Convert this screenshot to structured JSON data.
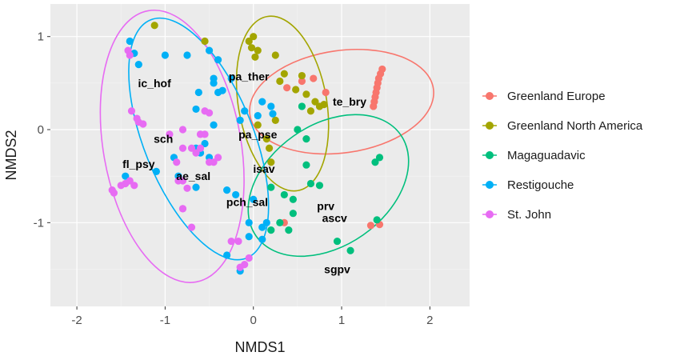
{
  "chart_data": {
    "type": "scatter",
    "title": "",
    "xlabel": "NMDS1",
    "ylabel": "NMDS2",
    "xlim": [
      -2.3,
      2.45
    ],
    "ylim": [
      -1.9,
      1.35
    ],
    "x_ticks": [
      -2,
      -1,
      0,
      1,
      2
    ],
    "y_ticks": [
      -1,
      0,
      1
    ],
    "x_tick_labels": [
      "-2",
      "-1",
      "0",
      "1",
      "2"
    ],
    "y_tick_labels": [
      "-1",
      "0",
      "1"
    ],
    "grid": true,
    "background": "#ebebeb",
    "legend_position": "right",
    "series": [
      {
        "name": "Greenland Europe",
        "color": "#f8766d",
        "points": [
          [
            1.46,
            0.65
          ],
          [
            1.44,
            0.6
          ],
          [
            1.42,
            0.55
          ],
          [
            1.41,
            0.5
          ],
          [
            1.4,
            0.45
          ],
          [
            1.39,
            0.4
          ],
          [
            1.38,
            0.35
          ],
          [
            1.37,
            0.3
          ],
          [
            1.36,
            0.25
          ],
          [
            0.82,
            0.4
          ],
          [
            0.68,
            0.55
          ],
          [
            0.55,
            0.52
          ],
          [
            0.38,
            0.45
          ],
          [
            0.35,
            -1.0
          ],
          [
            1.33,
            -1.03
          ],
          [
            1.43,
            -1.02
          ]
        ],
        "ellipse": {
          "cx": 1.0,
          "cy": 0.3,
          "rx": 1.05,
          "ry": 0.55,
          "angle": -8
        }
      },
      {
        "name": "Greenland North America",
        "color": "#a3a500",
        "points": [
          [
            -1.12,
            1.12
          ],
          [
            -0.55,
            0.95
          ],
          [
            -0.05,
            0.95
          ],
          [
            -0.02,
            0.88
          ],
          [
            0.0,
            1.0
          ],
          [
            0.05,
            0.85
          ],
          [
            0.02,
            0.78
          ],
          [
            0.25,
            0.8
          ],
          [
            0.35,
            0.6
          ],
          [
            0.3,
            0.52
          ],
          [
            0.55,
            0.58
          ],
          [
            0.48,
            0.43
          ],
          [
            0.6,
            0.38
          ],
          [
            0.7,
            0.3
          ],
          [
            0.65,
            0.2
          ],
          [
            0.75,
            0.25
          ],
          [
            0.8,
            0.27
          ],
          [
            0.25,
            0.1
          ],
          [
            0.05,
            0.05
          ],
          [
            0.15,
            -0.1
          ],
          [
            0.18,
            -0.2
          ],
          [
            0.2,
            -0.35
          ]
        ],
        "ellipse": {
          "cx": 0.33,
          "cy": 0.28,
          "rx": 0.5,
          "ry": 0.95,
          "angle": -10
        }
      },
      {
        "name": "Magaguadavic",
        "color": "#00bf7d",
        "points": [
          [
            0.55,
            0.25
          ],
          [
            0.5,
            0.0
          ],
          [
            0.6,
            -0.1
          ],
          [
            0.6,
            -0.38
          ],
          [
            0.65,
            -0.58
          ],
          [
            0.75,
            -0.6
          ],
          [
            0.35,
            -0.7
          ],
          [
            0.45,
            -0.75
          ],
          [
            0.45,
            -0.9
          ],
          [
            0.3,
            -1.0
          ],
          [
            0.2,
            -1.08
          ],
          [
            0.4,
            -1.08
          ],
          [
            0.95,
            -1.2
          ],
          [
            1.1,
            -1.3
          ],
          [
            1.4,
            -0.97
          ],
          [
            1.38,
            -0.35
          ],
          [
            1.43,
            -0.3
          ],
          [
            0.2,
            -0.62
          ]
        ],
        "ellipse": {
          "cx": 0.85,
          "cy": -0.6,
          "rx": 1.0,
          "ry": 0.65,
          "angle": -35
        }
      },
      {
        "name": "Restigouche",
        "color": "#00b0f6",
        "points": [
          [
            -1.4,
            0.95
          ],
          [
            -1.35,
            0.82
          ],
          [
            -1.0,
            0.8
          ],
          [
            -1.3,
            0.7
          ],
          [
            -0.75,
            0.8
          ],
          [
            -0.5,
            0.85
          ],
          [
            -0.4,
            0.75
          ],
          [
            -0.62,
            0.4
          ],
          [
            -0.45,
            0.55
          ],
          [
            -0.65,
            0.22
          ],
          [
            -0.45,
            0.5
          ],
          [
            -0.35,
            0.42
          ],
          [
            -0.4,
            0.4
          ],
          [
            -0.25,
            0.55
          ],
          [
            -0.1,
            0.2
          ],
          [
            0.1,
            0.3
          ],
          [
            0.2,
            0.25
          ],
          [
            0.22,
            0.17
          ],
          [
            0.05,
            0.15
          ],
          [
            -0.15,
            0.1
          ],
          [
            -0.45,
            0.05
          ],
          [
            -0.55,
            -0.15
          ],
          [
            -0.6,
            -0.25
          ],
          [
            -0.5,
            -0.3
          ],
          [
            -0.65,
            -0.2
          ],
          [
            -0.9,
            -0.3
          ],
          [
            -1.1,
            -0.45
          ],
          [
            -1.45,
            -0.5
          ],
          [
            -0.85,
            -0.5
          ],
          [
            -0.65,
            -0.62
          ],
          [
            -0.3,
            -0.65
          ],
          [
            -0.2,
            -0.7
          ],
          [
            -0.05,
            -1.0
          ],
          [
            -0.05,
            -1.15
          ],
          [
            0.15,
            -1.0
          ],
          [
            0.1,
            -1.18
          ],
          [
            0.1,
            -1.05
          ],
          [
            -0.3,
            -1.35
          ],
          [
            -0.15,
            -1.52
          ],
          [
            0.0,
            -0.75
          ]
        ],
        "ellipse": {
          "cx": -0.62,
          "cy": -0.1,
          "rx": 0.62,
          "ry": 1.38,
          "angle": -22
        }
      },
      {
        "name": "St. John",
        "color": "#e76bf3",
        "points": [
          [
            -1.42,
            0.85
          ],
          [
            -1.4,
            0.8
          ],
          [
            -1.38,
            0.2
          ],
          [
            -1.32,
            0.12
          ],
          [
            -1.3,
            0.08
          ],
          [
            -1.25,
            0.06
          ],
          [
            -0.8,
            0.0
          ],
          [
            -0.8,
            -0.2
          ],
          [
            -0.7,
            -0.2
          ],
          [
            -0.6,
            -0.05
          ],
          [
            -0.55,
            -0.05
          ],
          [
            -1.45,
            -0.58
          ],
          [
            -1.4,
            -0.55
          ],
          [
            -1.35,
            -0.6
          ],
          [
            -1.5,
            -0.6
          ],
          [
            -1.58,
            -0.68
          ],
          [
            -1.6,
            -0.65
          ],
          [
            -0.85,
            -0.55
          ],
          [
            -0.8,
            -0.55
          ],
          [
            -0.5,
            -0.35
          ],
          [
            -0.75,
            -0.63
          ],
          [
            -0.8,
            -0.85
          ],
          [
            -0.8,
            -0.85
          ],
          [
            -0.7,
            -1.05
          ],
          [
            -0.25,
            -1.2
          ],
          [
            -0.17,
            -1.2
          ],
          [
            -0.1,
            -1.45
          ],
          [
            -0.05,
            -1.38
          ],
          [
            -0.15,
            -1.48
          ],
          [
            -0.55,
            0.2
          ],
          [
            -0.5,
            0.18
          ],
          [
            -0.6,
            -0.05
          ],
          [
            -0.95,
            -0.05
          ],
          [
            -0.87,
            -0.35
          ],
          [
            -0.6,
            -0.2
          ],
          [
            -0.4,
            -0.3
          ],
          [
            -0.45,
            -0.35
          ],
          [
            -0.65,
            -0.25
          ]
        ],
        "ellipse": {
          "cx": -0.92,
          "cy": -0.18,
          "rx": 0.78,
          "ry": 1.48,
          "angle": -10
        }
      }
    ],
    "annotations": [
      {
        "text": "ic_hof",
        "x": -1.12,
        "y": 0.5
      },
      {
        "text": "pa_ther",
        "x": -0.05,
        "y": 0.57
      },
      {
        "text": "te_bry",
        "x": 1.09,
        "y": 0.3
      },
      {
        "text": "sch",
        "x": -1.02,
        "y": -0.1
      },
      {
        "text": "pa_pse",
        "x": 0.05,
        "y": -0.05
      },
      {
        "text": "fl_psy",
        "x": -1.3,
        "y": -0.37
      },
      {
        "text": "ae_sal",
        "x": -0.68,
        "y": -0.5
      },
      {
        "text": "isav",
        "x": 0.12,
        "y": -0.42
      },
      {
        "text": "pch_sal",
        "x": -0.07,
        "y": -0.78
      },
      {
        "text": "prv",
        "x": 0.82,
        "y": -0.82
      },
      {
        "text": "ascv",
        "x": 0.92,
        "y": -0.95
      },
      {
        "text": "sgpv",
        "x": 0.95,
        "y": -1.5
      }
    ]
  }
}
